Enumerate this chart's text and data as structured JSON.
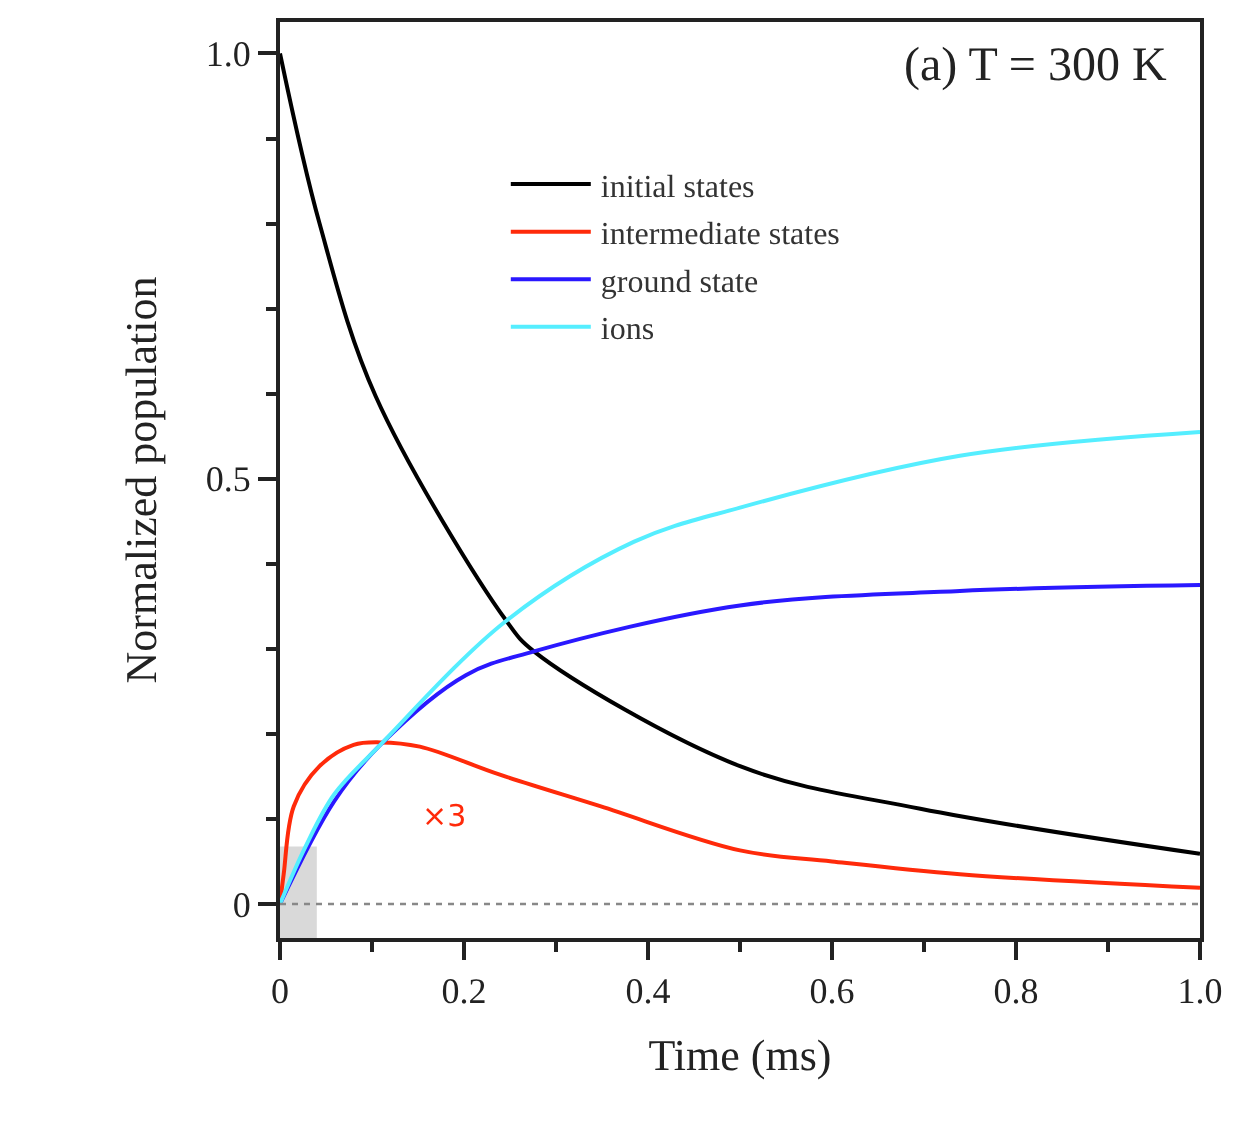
{
  "chart_data": {
    "type": "line",
    "title": "(a) T = 300 K",
    "xlabel": "Time (ms)",
    "ylabel": "Normalized population",
    "xlim": [
      0,
      1.0
    ],
    "xticks": [
      0,
      0.2,
      0.4,
      0.6,
      0.8,
      {
        "value": 1.0,
        "label": "1.0"
      }
    ],
    "ylim": [
      -0.04,
      1.037
    ],
    "yticks": [
      0,
      0.5,
      {
        "value": 1.0,
        "label": "1.0"
      }
    ],
    "grid": false,
    "legend": "top",
    "line_style": "solid",
    "marker": "none",
    "ref_lines": [
      {
        "axis": "y",
        "value": 0,
        "color": "#888888",
        "line_style": "dotted"
      }
    ],
    "bands": [
      {
        "axis": "x",
        "from": 0,
        "to": 0.04,
        "color": "#d9d9d9"
      }
    ],
    "annotations": [
      "×3"
    ],
    "series": [
      {
        "name": "initial states",
        "color": "#000000",
        "x": [
          0,
          0.043,
          0.104,
          0.246,
          0.276,
          0.5,
          0.696,
          1.0
        ],
        "values": [
          1.0,
          0.8,
          0.597,
          0.333,
          0.297,
          0.162,
          0.112,
          0.059
        ]
      },
      {
        "name": "intermediate states",
        "color": "#ff2a0a",
        "x": [
          0,
          0.004,
          0.015,
          0.043,
          0.08,
          0.109,
          0.152,
          0.239,
          0.348,
          0.5,
          0.6,
          0.739,
          1.0
        ],
        "values": [
          0,
          0.035,
          0.115,
          0.162,
          0.187,
          0.19,
          0.185,
          0.152,
          0.115,
          0.063,
          0.05,
          0.035,
          0.019
        ]
      },
      {
        "name": "ground state",
        "color": "#2a18ff",
        "x": [
          0,
          0.059,
          0.109,
          0.202,
          0.276,
          0.5,
          0.739,
          1.0
        ],
        "values": [
          0,
          0.121,
          0.187,
          0.269,
          0.297,
          0.351,
          0.368,
          0.375
        ]
      },
      {
        "name": "ions",
        "color": "#55eeff",
        "x": [
          0,
          0.028,
          0.059,
          0.109,
          0.246,
          0.385,
          0.5,
          0.739,
          1.0
        ],
        "values": [
          0,
          0.068,
          0.129,
          0.187,
          0.333,
          0.426,
          0.466,
          0.527,
          0.555
        ]
      }
    ]
  }
}
